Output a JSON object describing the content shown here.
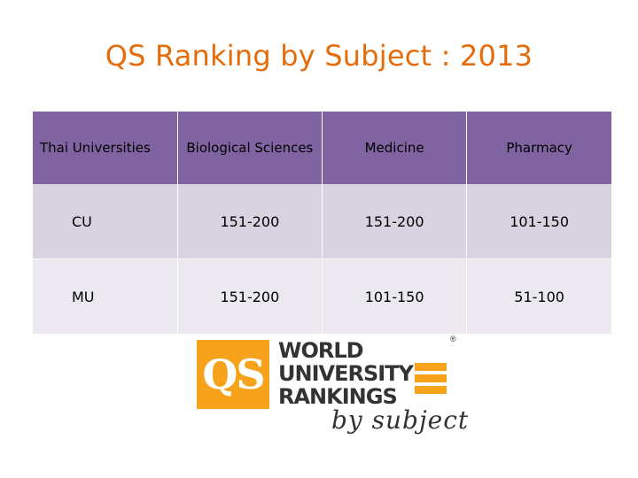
{
  "slide": {
    "title": "QS Ranking by Subject : 2013"
  },
  "table": {
    "headers": {
      "col0": "Thai Universities",
      "col1": "Biological Sciences",
      "col2": "Medicine",
      "col3": "Pharmacy"
    },
    "rows": [
      {
        "university": "CU",
        "biological_sciences": "151-200",
        "medicine": "151-200",
        "pharmacy": "101-150"
      },
      {
        "university": "MU",
        "biological_sciences": "151-200",
        "medicine": "101-150",
        "pharmacy": "51-100"
      }
    ]
  },
  "logo": {
    "mark": "QS",
    "line1": "WORLD",
    "line2": "UNIVERSITY",
    "line3": "RANKINGS",
    "tagline": "by subject",
    "registered": "®"
  },
  "colors": {
    "title": "#E46C0A",
    "header_bg": "#8064A2",
    "row_a_bg": "#D9D2E0",
    "row_b_bg": "#ECE8F0",
    "logo_orange": "#F7A21B"
  }
}
